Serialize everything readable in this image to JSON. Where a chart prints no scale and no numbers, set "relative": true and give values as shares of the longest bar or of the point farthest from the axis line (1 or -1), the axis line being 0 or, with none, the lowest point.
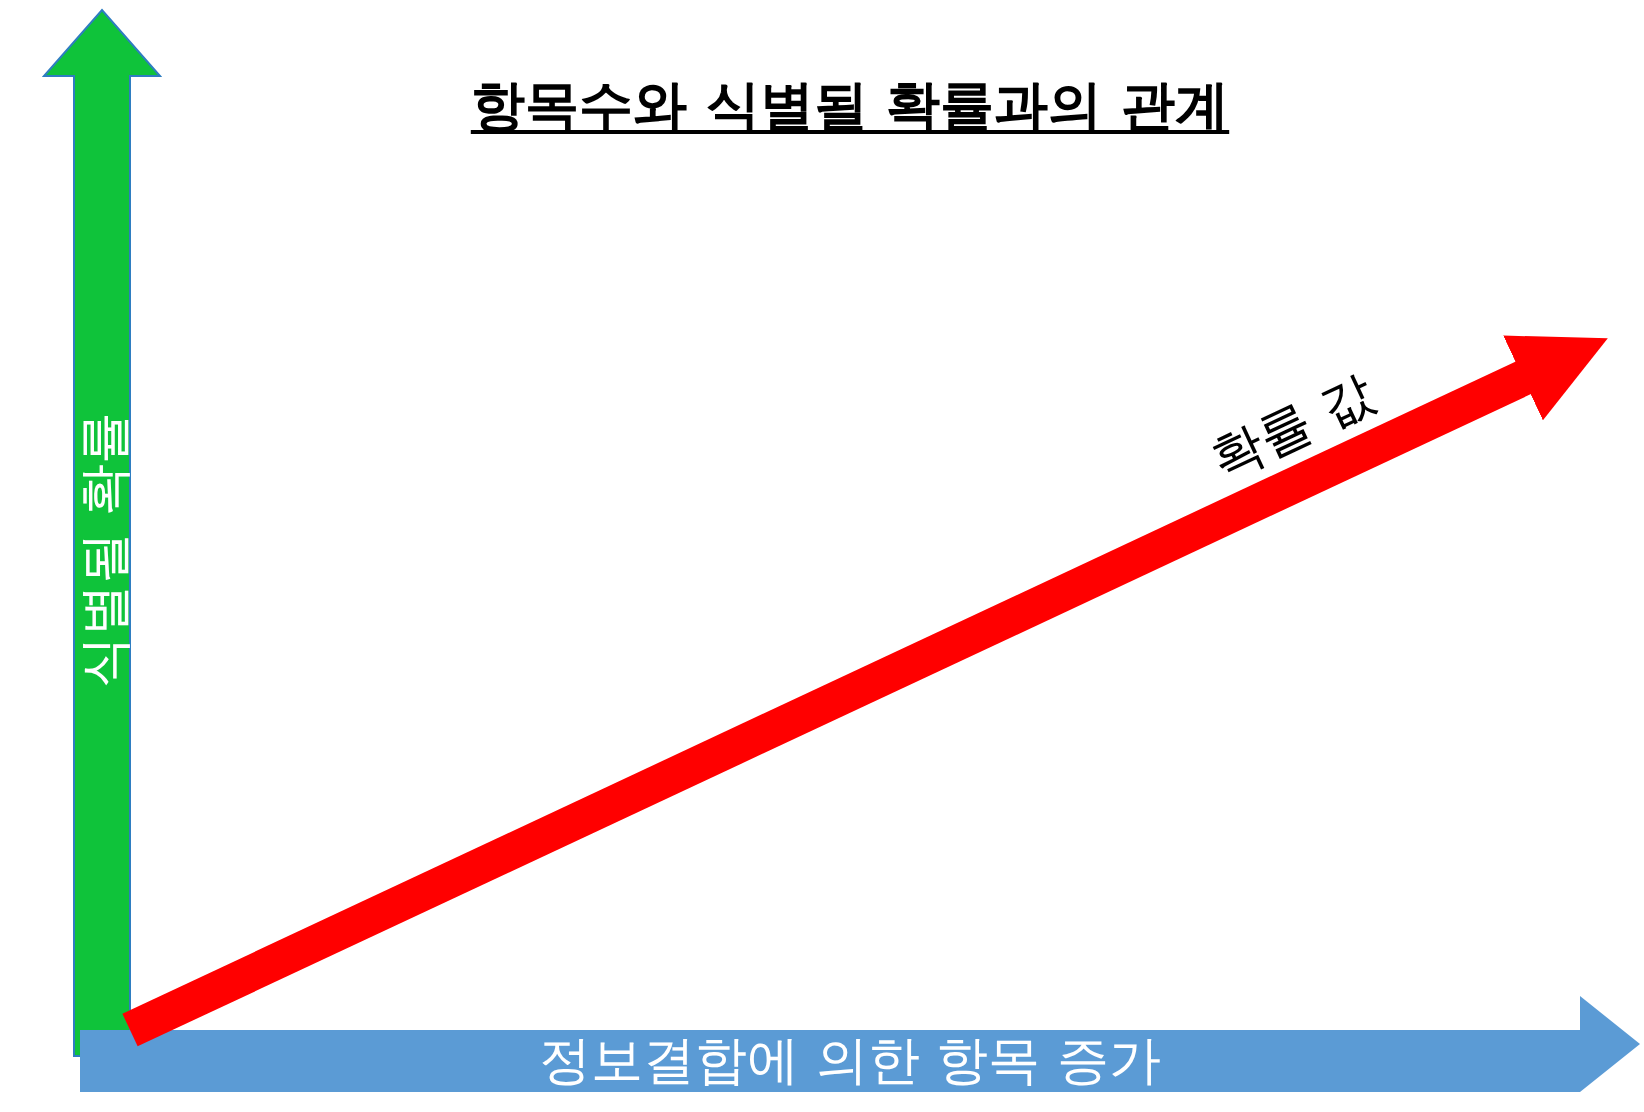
{
  "chart_data": {
    "type": "line",
    "title": "항목수와 식별될 확률과의 관계",
    "xlabel": "정보결합에 의한 항목 증가",
    "ylabel": "식별될 확률",
    "relative": true,
    "categories": [
      null,
      null
    ],
    "series": [
      {
        "name": "확률 값",
        "color": "#ff0000",
        "values": [
          0,
          1
        ]
      }
    ]
  }
}
